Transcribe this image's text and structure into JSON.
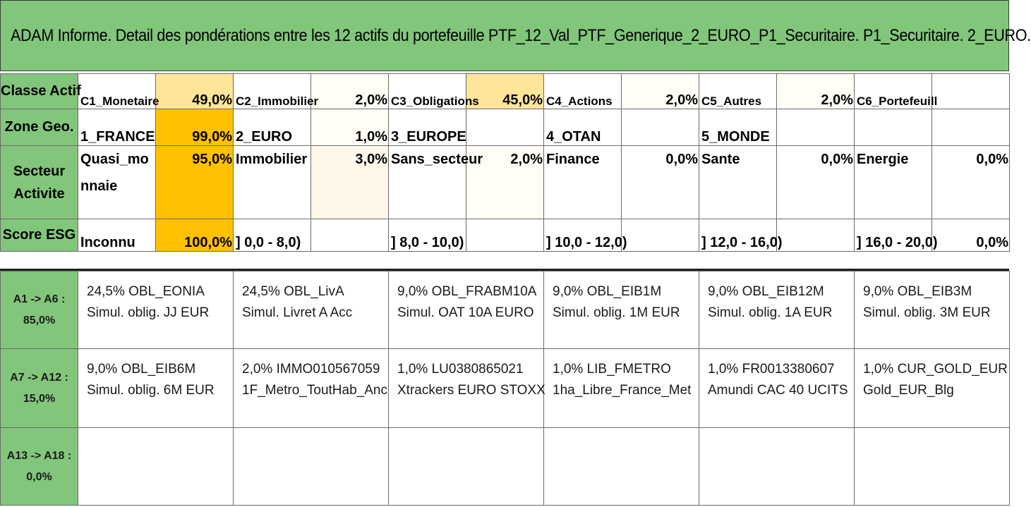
{
  "title": "ADAM Informe. Detail des pondérations entre les 12 actifs du portefeuille PTF_12_Val_PTF_Generique_2_EURO_P1_Securitaire. P1_Securitaire. 2_EURO.",
  "colors": {
    "header_green": "#82c67b",
    "light_yellow": "#ffe599",
    "orange": "#ffc000",
    "pale": "#fff8e8"
  },
  "rows": {
    "classe": {
      "label": "Classe Actif",
      "cells": [
        {
          "name": "C1_Monetaire",
          "pct": "49,0%"
        },
        {
          "name": "C2_Immobilier",
          "pct": "2,0%"
        },
        {
          "name": "C3_Obligations",
          "pct": "45,0%"
        },
        {
          "name": "C4_Actions",
          "pct": "2,0%"
        },
        {
          "name": "C5_Autres",
          "pct": "2,0%"
        },
        {
          "name": "C6_Portefeuill",
          "pct": ""
        }
      ]
    },
    "zone": {
      "label": "Zone Geo.",
      "cells": [
        {
          "name": "1_FRANCE",
          "pct": "99,0%"
        },
        {
          "name": "2_EURO",
          "pct": "1,0%"
        },
        {
          "name": "3_EUROPE",
          "pct": ""
        },
        {
          "name": "4_OTAN",
          "pct": ""
        },
        {
          "name": "5_MONDE",
          "pct": ""
        },
        {
          "name": "",
          "pct": ""
        }
      ]
    },
    "secteur": {
      "label": "Secteur Activite",
      "cells": [
        {
          "name": "Quasi_monnaie",
          "pct": "95,0%"
        },
        {
          "name": "Immobilier",
          "pct": "3,0%"
        },
        {
          "name": "Sans_secteur",
          "pct": "2,0%"
        },
        {
          "name": "Finance",
          "pct": "0,0%"
        },
        {
          "name": "Sante",
          "pct": "0,0%"
        },
        {
          "name": "Energie",
          "pct": "0,0%"
        }
      ]
    },
    "esg": {
      "label": "Score ESG",
      "cells": [
        {
          "name": "Inconnu",
          "pct": "100,0%"
        },
        {
          "name": "] 0,0 - 8,0)",
          "pct": ""
        },
        {
          "name": "] 8,0 - 10,0)",
          "pct": ""
        },
        {
          "name": "] 10,0 - 12,0)",
          "pct": ""
        },
        {
          "name": "] 12,0 - 16,0)",
          "pct": ""
        },
        {
          "name": "] 16,0 - 20,0)",
          "pct": "0,0%"
        }
      ]
    }
  },
  "groups": [
    {
      "label": "A1 -> A6 :",
      "total": "85,0%",
      "assets": [
        {
          "line1": "24,5% OBL_EONIA",
          "line2": "Simul. oblig. JJ EUR"
        },
        {
          "line1": "24,5% OBL_LivA",
          "line2": "Simul. Livret A Acc"
        },
        {
          "line1": "9,0% OBL_FRABM10A",
          "line2": "Simul. OAT 10A EURO"
        },
        {
          "line1": "9,0% OBL_EIB1M",
          "line2": "Simul. oblig. 1M EUR"
        },
        {
          "line1": "9,0% OBL_EIB12M",
          "line2": "Simul. oblig. 1A EUR"
        },
        {
          "line1": "9,0% OBL_EIB3M",
          "line2": "Simul. oblig. 3M EUR"
        }
      ]
    },
    {
      "label": "A7 -> A12 :",
      "total": "15,0%",
      "assets": [
        {
          "line1": "9,0% OBL_EIB6M",
          "line2": "Simul. oblig. 6M EUR"
        },
        {
          "line1": "2,0% IMMO010567059",
          "line2": "1F_Metro_ToutHab_Anc"
        },
        {
          "line1": "1,0% LU0380865021",
          "line2": "Xtrackers EURO STOXX"
        },
        {
          "line1": "1,0% LIB_FMETRO",
          "line2": "1ha_Libre_France_Met"
        },
        {
          "line1": "1,0% FR0013380607",
          "line2": "Amundi CAC 40 UCITS"
        },
        {
          "line1": "1,0% CUR_GOLD_EUR",
          "line2": "Gold_EUR_Blg"
        }
      ]
    },
    {
      "label": "A13 -> A18 :",
      "total": "0,0%",
      "assets": [
        {
          "line1": "",
          "line2": ""
        },
        {
          "line1": "",
          "line2": ""
        },
        {
          "line1": "",
          "line2": ""
        },
        {
          "line1": "",
          "line2": ""
        },
        {
          "line1": "",
          "line2": ""
        },
        {
          "line1": "",
          "line2": ""
        }
      ]
    }
  ]
}
